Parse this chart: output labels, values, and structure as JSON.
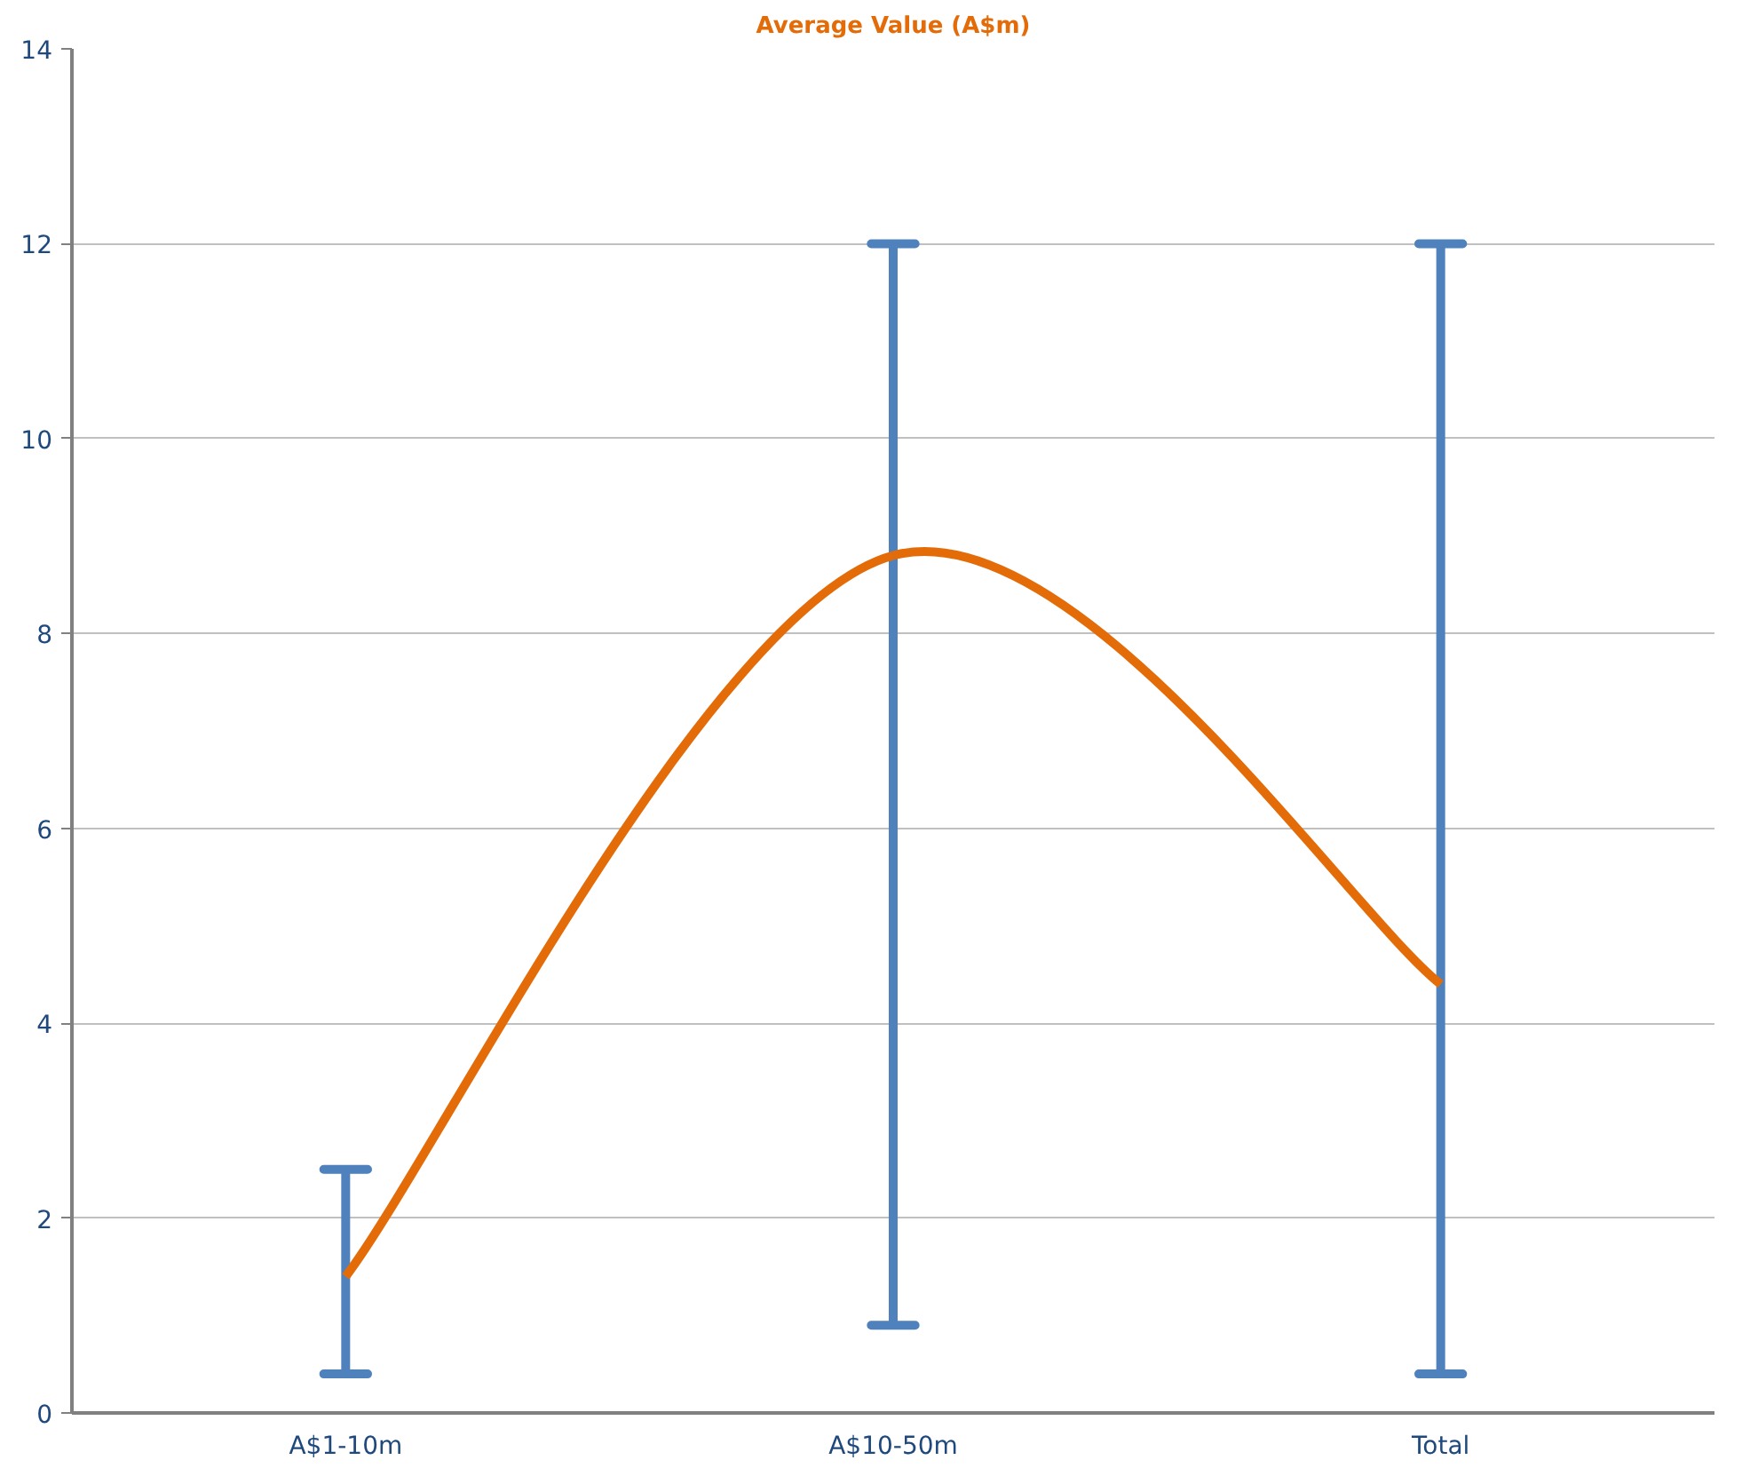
{
  "chart_data": {
    "type": "line",
    "title": "Average Value (A$m)",
    "categories": [
      "A$1-10m",
      "A$10-50m",
      "Total"
    ],
    "series": [
      {
        "color": "#e36c09",
        "values": [
          1.4,
          8.8,
          4.4
        ],
        "errors": [
          [
            0.4,
            2.5
          ],
          [
            0.9,
            12
          ],
          [
            0.4,
            12
          ]
        ]
      }
    ],
    "ylim": [
      0,
      14
    ],
    "yticks": [
      0,
      2,
      4,
      6,
      8,
      10,
      12,
      14
    ],
    "grid": "y",
    "marker": "none",
    "line_style": "solid"
  }
}
